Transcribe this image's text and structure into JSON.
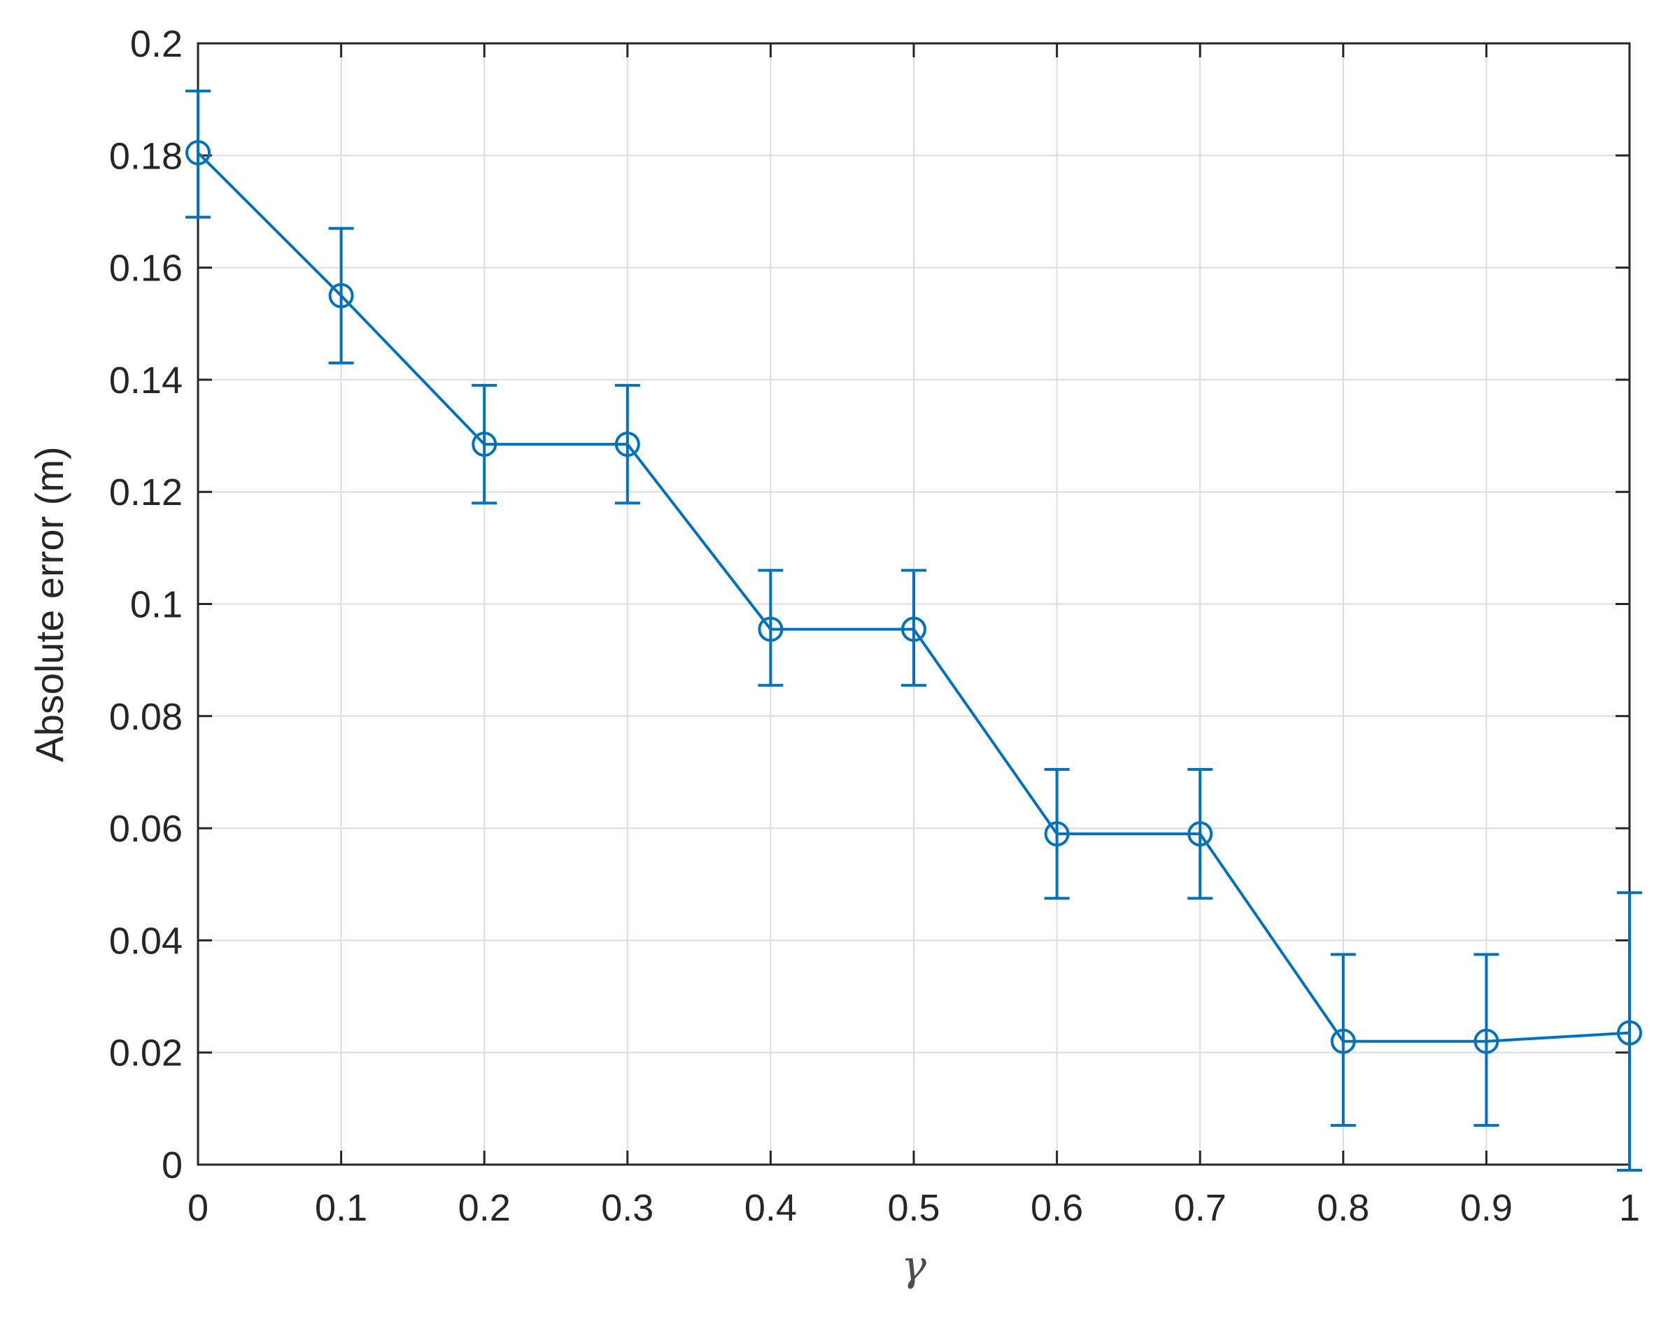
{
  "chart_data": {
    "type": "line",
    "xlabel": "γ",
    "ylabel": "Absolute error (m)",
    "xlim": [
      0,
      1
    ],
    "ylim": [
      0,
      0.2
    ],
    "grid": true,
    "x_ticks": [
      "0",
      "0.1",
      "0.2",
      "0.3",
      "0.4",
      "0.5",
      "0.6",
      "0.7",
      "0.8",
      "0.9",
      "1"
    ],
    "y_ticks": [
      "0",
      "0.02",
      "0.04",
      "0.06",
      "0.08",
      "0.1",
      "0.12",
      "0.14",
      "0.16",
      "0.18",
      "0.2"
    ],
    "series": [
      {
        "color": "#0072BD",
        "marker": "circle",
        "x": [
          0,
          0.1,
          0.2,
          0.3,
          0.4,
          0.5,
          0.6,
          0.7,
          0.8,
          0.9,
          1
        ],
        "y": [
          0.1805,
          0.155,
          0.1285,
          0.1285,
          0.0955,
          0.0955,
          0.059,
          0.059,
          0.022,
          0.022,
          0.0235
        ],
        "err_lower": [
          0.0115,
          0.012,
          0.0105,
          0.0105,
          0.01,
          0.01,
          0.0115,
          0.0115,
          0.015,
          0.015,
          0.0245
        ],
        "err_upper": [
          0.011,
          0.012,
          0.0105,
          0.0105,
          0.0105,
          0.0105,
          0.0115,
          0.0115,
          0.0155,
          0.0155,
          0.025
        ]
      }
    ]
  }
}
